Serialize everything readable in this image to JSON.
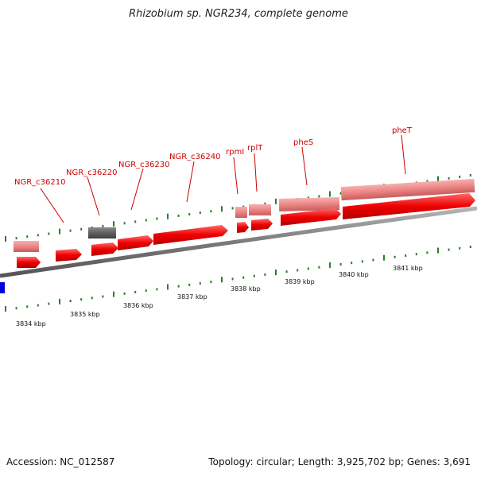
{
  "title": "Rhizobium sp. NGR234, complete genome",
  "footer": {
    "accession": "Accession: NC_012587",
    "summary": "Topology: circular; Length: 3,925,702 bp; Genes: 3,691"
  },
  "colors": {
    "cds": "#ee0000",
    "gene": "#ee8080",
    "pseudo_gene": "#606060",
    "label": "#cc0000",
    "ticks": "#2a7d2a",
    "backbone": "#808080",
    "other_feature": "#0000dd"
  },
  "ruler": [
    "3834 kbp",
    "3835 kbp",
    "3836 kbp",
    "3837 kbp",
    "3838 kbp",
    "3839 kbp",
    "3840 kbp",
    "3841 kbp"
  ],
  "genes": [
    {
      "label": "NGR_c36210"
    },
    {
      "label": "NGR_c36220"
    },
    {
      "label": "NGR_c36230"
    },
    {
      "label": "NGR_c36240"
    },
    {
      "label": "rpmI"
    },
    {
      "label": "rplT"
    },
    {
      "label": "pheS"
    },
    {
      "label": "pheT"
    }
  ]
}
